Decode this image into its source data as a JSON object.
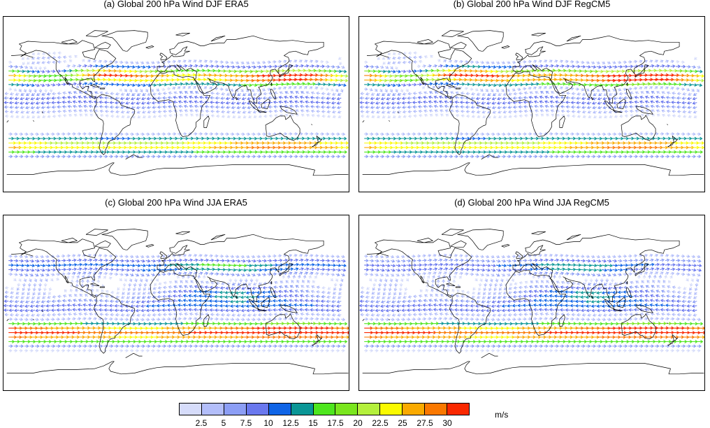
{
  "panels": [
    {
      "title": "(a) Global 200 hPa Wind DJF ERA5",
      "season": "DJF",
      "model": "ERA5"
    },
    {
      "title": "(b) Global 200 hPa Wind DJF RegCM5",
      "season": "DJF",
      "model": "RegCM5"
    },
    {
      "title": "(c) Global 200 hPa Wind JJA ERA5",
      "season": "JJA",
      "model": "ERA5"
    },
    {
      "title": "(d) Global 200 hPa Wind JJA RegCM5",
      "season": "JJA",
      "model": "RegCM5"
    }
  ],
  "colorbar": {
    "colors": [
      "#d6dcfa",
      "#b3befa",
      "#8c9ef5",
      "#6a78ee",
      "#0f64e6",
      "#0a9696",
      "#4ee61e",
      "#7ae61e",
      "#b4f03c",
      "#fafa00",
      "#faaa00",
      "#fa7800",
      "#fa2800"
    ],
    "labels": [
      "2.5",
      "5",
      "7.5",
      "10",
      "12.5",
      "15",
      "17.5",
      "20",
      "22.5",
      "25",
      "27.5",
      "30"
    ],
    "units": "m/s"
  }
}
